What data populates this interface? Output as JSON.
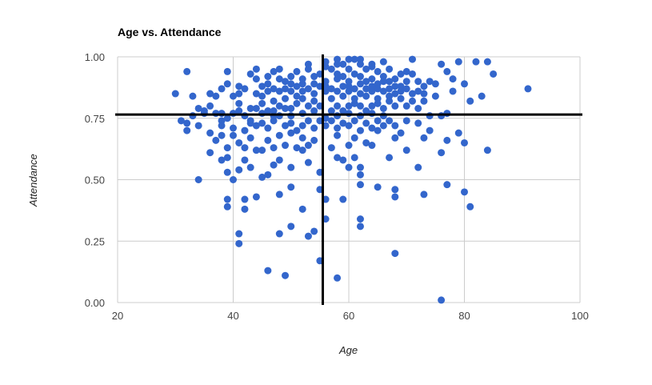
{
  "chart_data": {
    "type": "scatter",
    "title": "Age vs. Attendance",
    "xlabel": "Age",
    "ylabel": "Attendance",
    "xlim": [
      20,
      100
    ],
    "ylim": [
      0,
      1
    ],
    "xticks": [
      20,
      40,
      60,
      80,
      100
    ],
    "yticks": [
      0,
      0.25,
      0.5,
      0.75,
      1
    ],
    "ytick_labels": [
      "0.00",
      "0.25",
      "0.50",
      "0.75",
      "1.00"
    ],
    "grid": true,
    "point_color": "#3366cc",
    "reference_lines": [
      {
        "orientation": "vertical",
        "value": 55.5
      },
      {
        "orientation": "horizontal",
        "value": 0.765
      }
    ],
    "series": [
      {
        "points": [
          [
            30,
            0.85
          ],
          [
            32,
            0.94
          ],
          [
            33,
            0.84
          ],
          [
            34,
            0.79
          ],
          [
            35,
            0.78
          ],
          [
            36,
            0.85
          ],
          [
            37,
            0.84
          ],
          [
            38,
            0.87
          ],
          [
            39,
            0.89
          ],
          [
            39,
            0.94
          ],
          [
            40,
            0.84
          ],
          [
            41,
            0.88
          ],
          [
            41,
            0.85
          ],
          [
            42,
            0.87
          ],
          [
            43,
            0.93
          ],
          [
            44,
            0.95
          ],
          [
            44,
            0.85
          ],
          [
            45,
            0.88
          ],
          [
            46,
            0.92
          ],
          [
            47,
            0.94
          ],
          [
            48,
            0.95
          ],
          [
            49,
            0.9
          ],
          [
            50,
            0.92
          ],
          [
            51,
            0.94
          ],
          [
            52,
            0.89
          ],
          [
            53,
            0.95
          ],
          [
            53,
            0.97
          ],
          [
            54,
            0.92
          ],
          [
            55,
            0.93
          ],
          [
            56,
            0.96
          ],
          [
            56,
            0.9
          ],
          [
            57,
            0.95
          ],
          [
            58,
            0.99
          ],
          [
            58,
            0.93
          ],
          [
            59,
            0.97
          ],
          [
            59,
            0.92
          ],
          [
            60,
            0.95
          ],
          [
            60,
            0.9
          ],
          [
            61,
            0.99
          ],
          [
            61,
            0.93
          ],
          [
            62,
            0.97
          ],
          [
            62,
            0.92
          ],
          [
            63,
            0.95
          ],
          [
            63,
            0.9
          ],
          [
            64,
            0.96
          ],
          [
            64,
            0.91
          ],
          [
            65,
            0.94
          ],
          [
            65,
            0.89
          ],
          [
            66,
            0.98
          ],
          [
            66,
            0.92
          ],
          [
            67,
            0.95
          ],
          [
            67,
            0.9
          ],
          [
            68,
            0.91
          ],
          [
            69,
            0.93
          ],
          [
            69,
            0.88
          ],
          [
            70,
            0.94
          ],
          [
            71,
            0.99
          ],
          [
            71,
            0.93
          ],
          [
            72,
            0.9
          ],
          [
            73,
            0.88
          ],
          [
            74,
            0.9
          ],
          [
            75,
            0.89
          ],
          [
            76,
            0.97
          ],
          [
            77,
            0.94
          ],
          [
            78,
            0.91
          ],
          [
            79,
            0.98
          ],
          [
            80,
            0.89
          ],
          [
            82,
            0.98
          ],
          [
            84,
            0.98
          ],
          [
            85,
            0.93
          ],
          [
            91,
            0.87
          ],
          [
            31,
            0.74
          ],
          [
            32,
            0.73
          ],
          [
            32,
            0.7
          ],
          [
            33,
            0.76
          ],
          [
            35,
            0.77
          ],
          [
            36,
            0.8
          ],
          [
            37,
            0.77
          ],
          [
            38,
            0.74
          ],
          [
            38,
            0.77
          ],
          [
            39,
            0.75
          ],
          [
            40,
            0.77
          ],
          [
            41,
            0.78
          ],
          [
            42,
            0.76
          ],
          [
            43,
            0.74
          ],
          [
            44,
            0.79
          ],
          [
            45,
            0.77
          ],
          [
            45,
            0.81
          ],
          [
            46,
            0.78
          ],
          [
            47,
            0.78
          ],
          [
            47,
            0.82
          ],
          [
            48,
            0.8
          ],
          [
            48,
            0.76
          ],
          [
            49,
            0.83
          ],
          [
            50,
            0.79
          ],
          [
            50,
            0.76
          ],
          [
            51,
            0.81
          ],
          [
            52,
            0.77
          ],
          [
            52,
            0.83
          ],
          [
            53,
            0.8
          ],
          [
            54,
            0.78
          ],
          [
            54,
            0.82
          ],
          [
            55,
            0.8
          ],
          [
            57,
            0.78
          ],
          [
            58,
            0.8
          ],
          [
            59,
            0.78
          ],
          [
            60,
            0.8
          ],
          [
            61,
            0.83
          ],
          [
            62,
            0.8
          ],
          [
            63,
            0.78
          ],
          [
            64,
            0.8
          ],
          [
            65,
            0.83
          ],
          [
            66,
            0.79
          ],
          [
            67,
            0.82
          ],
          [
            68,
            0.8
          ],
          [
            69,
            0.83
          ],
          [
            70,
            0.8
          ],
          [
            71,
            0.82
          ],
          [
            72,
            0.79
          ],
          [
            73,
            0.82
          ],
          [
            75,
            0.84
          ],
          [
            76,
            0.76
          ],
          [
            77,
            0.77
          ],
          [
            78,
            0.86
          ],
          [
            81,
            0.82
          ],
          [
            83,
            0.84
          ],
          [
            36,
            0.61
          ],
          [
            37,
            0.66
          ],
          [
            38,
            0.58
          ],
          [
            38,
            0.68
          ],
          [
            39,
            0.53
          ],
          [
            39,
            0.63
          ],
          [
            39,
            0.59
          ],
          [
            40,
            0.5
          ],
          [
            40,
            0.68
          ],
          [
            41,
            0.65
          ],
          [
            41,
            0.54
          ],
          [
            42,
            0.63
          ],
          [
            42,
            0.58
          ],
          [
            43,
            0.55
          ],
          [
            43,
            0.67
          ],
          [
            44,
            0.62
          ],
          [
            44,
            0.72
          ],
          [
            45,
            0.51
          ],
          [
            45,
            0.62
          ],
          [
            46,
            0.66
          ],
          [
            46,
            0.52
          ],
          [
            47,
            0.56
          ],
          [
            47,
            0.63
          ],
          [
            48,
            0.58
          ],
          [
            48,
            0.68
          ],
          [
            49,
            0.64
          ],
          [
            50,
            0.55
          ],
          [
            50,
            0.69
          ],
          [
            51,
            0.63
          ],
          [
            52,
            0.62
          ],
          [
            52,
            0.67
          ],
          [
            53,
            0.57
          ],
          [
            53,
            0.64
          ],
          [
            54,
            0.66
          ],
          [
            55,
            0.53
          ],
          [
            57,
            0.63
          ],
          [
            58,
            0.59
          ],
          [
            58,
            0.68
          ],
          [
            59,
            0.58
          ],
          [
            60,
            0.55
          ],
          [
            60,
            0.64
          ],
          [
            61,
            0.59
          ],
          [
            61,
            0.67
          ],
          [
            62,
            0.55
          ],
          [
            62,
            0.52
          ],
          [
            63,
            0.65
          ],
          [
            64,
            0.64
          ],
          [
            65,
            0.7
          ],
          [
            67,
            0.59
          ],
          [
            68,
            0.67
          ],
          [
            70,
            0.62
          ],
          [
            72,
            0.55
          ],
          [
            73,
            0.67
          ],
          [
            74,
            0.7
          ],
          [
            76,
            0.61
          ],
          [
            77,
            0.66
          ],
          [
            79,
            0.69
          ],
          [
            80,
            0.65
          ],
          [
            84,
            0.62
          ],
          [
            34,
            0.5
          ],
          [
            39,
            0.42
          ],
          [
            39,
            0.39
          ],
          [
            41,
            0.28
          ],
          [
            41,
            0.24
          ],
          [
            42,
            0.42
          ],
          [
            42,
            0.38
          ],
          [
            44,
            0.43
          ],
          [
            46,
            0.13
          ],
          [
            48,
            0.44
          ],
          [
            48,
            0.28
          ],
          [
            49,
            0.11
          ],
          [
            50,
            0.47
          ],
          [
            50,
            0.31
          ],
          [
            52,
            0.38
          ],
          [
            53,
            0.27
          ],
          [
            54,
            0.29
          ],
          [
            55,
            0.46
          ],
          [
            55,
            0.17
          ],
          [
            56,
            0.42
          ],
          [
            56,
            0.34
          ],
          [
            58,
            0.1
          ],
          [
            59,
            0.42
          ],
          [
            62,
            0.48
          ],
          [
            62,
            0.34
          ],
          [
            62,
            0.31
          ],
          [
            65,
            0.47
          ],
          [
            68,
            0.46
          ],
          [
            68,
            0.43
          ],
          [
            68,
            0.2
          ],
          [
            73,
            0.44
          ],
          [
            76,
            0.01
          ],
          [
            77,
            0.48
          ],
          [
            80,
            0.45
          ],
          [
            81,
            0.39
          ],
          [
            34,
            0.72
          ],
          [
            36,
            0.69
          ],
          [
            38,
            0.72
          ],
          [
            40,
            0.71
          ],
          [
            42,
            0.7
          ],
          [
            43,
            0.73
          ],
          [
            45,
            0.73
          ],
          [
            46,
            0.71
          ],
          [
            47,
            0.74
          ],
          [
            49,
            0.72
          ],
          [
            50,
            0.73
          ],
          [
            51,
            0.7
          ],
          [
            52,
            0.72
          ],
          [
            53,
            0.74
          ],
          [
            54,
            0.71
          ],
          [
            55,
            0.74
          ],
          [
            56,
            0.72
          ],
          [
            57,
            0.74
          ],
          [
            58,
            0.71
          ],
          [
            59,
            0.73
          ],
          [
            60,
            0.72
          ],
          [
            61,
            0.74
          ],
          [
            62,
            0.7
          ],
          [
            63,
            0.73
          ],
          [
            64,
            0.71
          ],
          [
            65,
            0.74
          ],
          [
            66,
            0.72
          ],
          [
            67,
            0.74
          ],
          [
            68,
            0.72
          ],
          [
            69,
            0.69
          ],
          [
            70,
            0.74
          ],
          [
            72,
            0.73
          ],
          [
            74,
            0.76
          ],
          [
            46,
            0.86
          ],
          [
            47,
            0.87
          ],
          [
            48,
            0.86
          ],
          [
            49,
            0.87
          ],
          [
            50,
            0.86
          ],
          [
            51,
            0.88
          ],
          [
            52,
            0.86
          ],
          [
            53,
            0.87
          ],
          [
            54,
            0.85
          ],
          [
            55,
            0.88
          ],
          [
            56,
            0.86
          ],
          [
            57,
            0.87
          ],
          [
            58,
            0.86
          ],
          [
            59,
            0.88
          ],
          [
            60,
            0.86
          ],
          [
            61,
            0.87
          ],
          [
            62,
            0.85
          ],
          [
            63,
            0.87
          ],
          [
            64,
            0.86
          ],
          [
            65,
            0.87
          ],
          [
            66,
            0.86
          ],
          [
            67,
            0.87
          ],
          [
            68,
            0.85
          ],
          [
            69,
            0.86
          ],
          [
            70,
            0.87
          ],
          [
            71,
            0.85
          ],
          [
            72,
            0.86
          ],
          [
            73,
            0.85
          ],
          [
            44,
            0.91
          ],
          [
            46,
            0.89
          ],
          [
            48,
            0.91
          ],
          [
            50,
            0.89
          ],
          [
            52,
            0.91
          ],
          [
            54,
            0.89
          ],
          [
            56,
            0.88
          ],
          [
            58,
            0.91
          ],
          [
            60,
            0.88
          ],
          [
            62,
            0.89
          ],
          [
            64,
            0.88
          ],
          [
            66,
            0.9
          ],
          [
            68,
            0.88
          ],
          [
            70,
            0.9
          ],
          [
            56,
            0.98
          ],
          [
            58,
            0.97
          ],
          [
            60,
            0.99
          ],
          [
            62,
            0.99
          ],
          [
            64,
            0.97
          ],
          [
            57,
            0.83
          ],
          [
            59,
            0.84
          ],
          [
            61,
            0.81
          ],
          [
            63,
            0.84
          ],
          [
            65,
            0.81
          ],
          [
            67,
            0.84
          ],
          [
            56,
            0.75
          ],
          [
            58,
            0.76
          ],
          [
            60,
            0.77
          ],
          [
            62,
            0.76
          ],
          [
            64,
            0.77
          ],
          [
            66,
            0.76
          ],
          [
            41,
            0.81
          ],
          [
            43,
            0.79
          ],
          [
            45,
            0.84
          ],
          [
            47,
            0.76
          ],
          [
            49,
            0.79
          ],
          [
            51,
            0.84
          ]
        ]
      }
    ]
  }
}
